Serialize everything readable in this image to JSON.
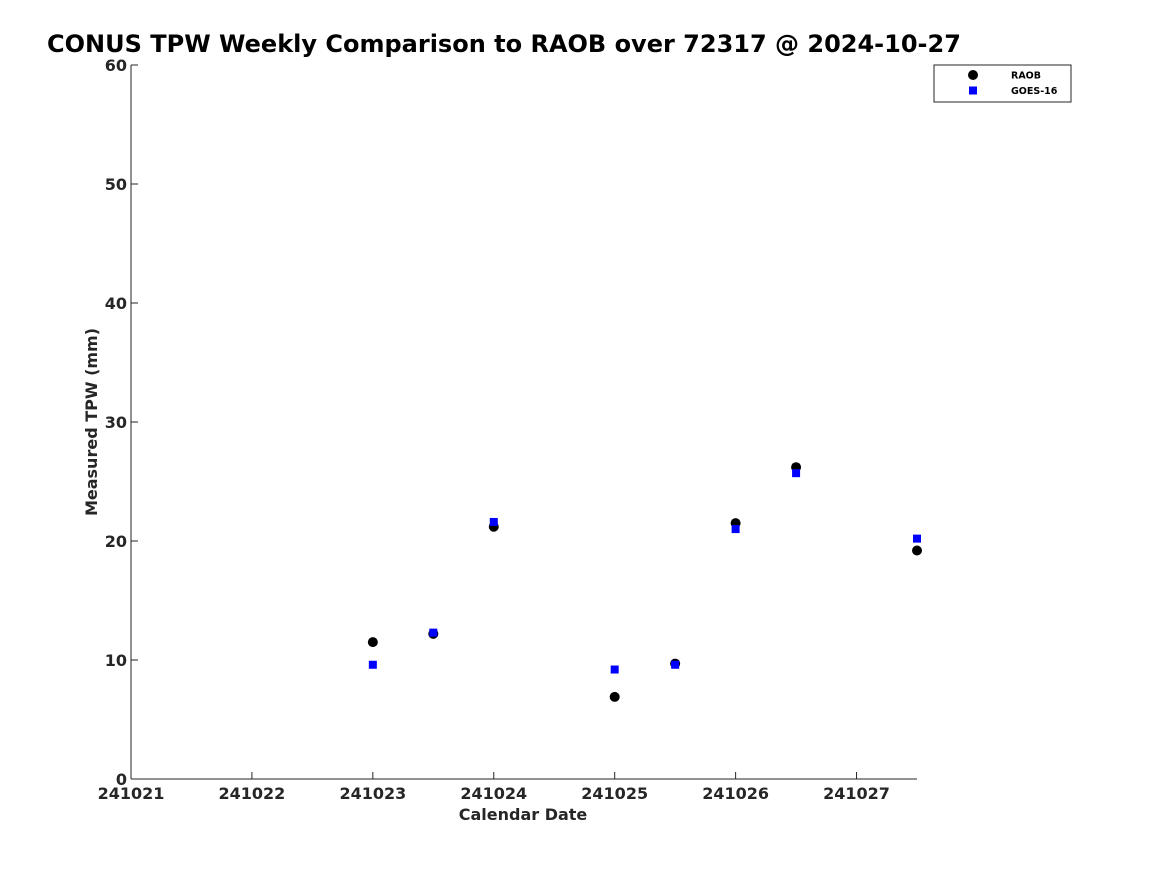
{
  "chart_data": {
    "type": "scatter",
    "title": "CONUS TPW Weekly Comparison to RAOB over 72317 @ 2024-10-27",
    "xlabel": "Calendar Date",
    "ylabel": "Measured TPW (mm)",
    "xlim": [
      "2024-10-21",
      "2024-10-27 12:00"
    ],
    "ylim": [
      0,
      60
    ],
    "x_ticks": [
      "2024-10-21",
      "2024-10-22",
      "2024-10-23",
      "2024-10-24",
      "2024-10-25",
      "2024-10-26",
      "2024-10-27"
    ],
    "x_tick_labels": [
      "241021",
      "241022",
      "241023",
      "241024",
      "241025",
      "241026",
      "241027"
    ],
    "y_ticks": [
      0,
      10,
      20,
      30,
      40,
      50,
      60
    ],
    "grid": false,
    "legend_position": "top-right",
    "series": [
      {
        "name": "RAOB",
        "marker": "circle",
        "color": "#000000",
        "x": [
          "2024-10-23 00:00",
          "2024-10-23 12:00",
          "2024-10-24 00:00",
          "2024-10-25 00:00",
          "2024-10-25 12:00",
          "2024-10-26 00:00",
          "2024-10-26 12:00",
          "2024-10-27 12:00"
        ],
        "values": [
          11.5,
          12.2,
          21.2,
          6.9,
          9.7,
          21.5,
          26.2,
          19.2
        ]
      },
      {
        "name": "GOES-16",
        "marker": "square",
        "color": "#0000ff",
        "x": [
          "2024-10-23 00:00",
          "2024-10-23 12:00",
          "2024-10-24 00:00",
          "2024-10-25 00:00",
          "2024-10-25 12:00",
          "2024-10-26 00:00",
          "2024-10-26 12:00",
          "2024-10-27 12:00"
        ],
        "values": [
          9.6,
          12.3,
          21.6,
          9.2,
          9.6,
          21.0,
          25.7,
          20.2
        ]
      }
    ]
  }
}
